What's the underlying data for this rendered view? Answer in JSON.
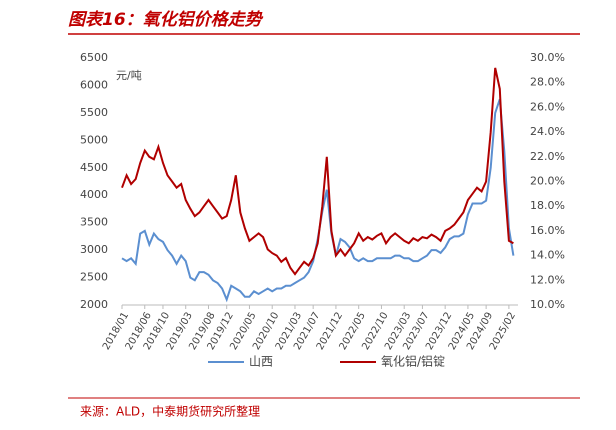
{
  "chart_data": {
    "type": "line",
    "title": "图表16：氧化铝价格走势",
    "unit_label": "元/吨",
    "source": "来源：ALD，中泰期货研究所整理",
    "x": [
      "2018/01",
      "2018/02",
      "2018/03",
      "2018/04",
      "2018/05",
      "2018/06",
      "2018/07",
      "2018/08",
      "2018/09",
      "2018/10",
      "2018/11",
      "2018/12",
      "2019/01",
      "2019/02",
      "2019/03",
      "2019/04",
      "2019/05",
      "2019/06",
      "2019/07",
      "2019/08",
      "2019/09",
      "2019/10",
      "2019/11",
      "2019/12",
      "2020/01",
      "2020/02",
      "2020/03",
      "2020/04",
      "2020/05",
      "2020/06",
      "2020/07",
      "2020/08",
      "2020/09",
      "2020/10",
      "2020/11",
      "2020/12",
      "2021/01",
      "2021/02",
      "2021/03",
      "2021/04",
      "2021/05",
      "2021/06",
      "2021/07",
      "2021/08",
      "2021/09",
      "2021/10",
      "2021/11",
      "2021/12",
      "2022/01",
      "2022/02",
      "2022/03",
      "2022/04",
      "2022/05",
      "2022/06",
      "2022/07",
      "2022/08",
      "2022/09",
      "2022/10",
      "2022/11",
      "2022/12",
      "2023/01",
      "2023/02",
      "2023/03",
      "2023/04",
      "2023/05",
      "2023/06",
      "2023/07",
      "2023/08",
      "2023/09",
      "2023/10",
      "2023/11",
      "2023/12",
      "2024/01",
      "2024/02",
      "2024/03",
      "2024/04",
      "2024/05",
      "2024/06",
      "2024/07",
      "2024/08",
      "2024/09",
      "2024/10",
      "2024/11",
      "2024/12",
      "2025/01",
      "2025/02",
      "2025/03"
    ],
    "xlim": [
      "2018/01",
      "2025/04"
    ],
    "xticks": [
      "2018/01",
      "2018/06",
      "2018/10",
      "2019/03",
      "2019/08",
      "2019/12",
      "2020/05",
      "2020/10",
      "2021/03",
      "2021/07",
      "2021/12",
      "2022/05",
      "2022/10",
      "2023/03",
      "2023/07",
      "2023/12",
      "2024/05",
      "2024/09",
      "2025/02"
    ],
    "ylim": [
      2000,
      6500
    ],
    "yticks": [
      2000,
      2500,
      3000,
      3500,
      4000,
      4500,
      5000,
      5500,
      6000,
      6500
    ],
    "y2lim": [
      10,
      30
    ],
    "y2ticks": [
      {
        "value": 10,
        "label": "10.0%"
      },
      {
        "value": 12,
        "label": "12.0%"
      },
      {
        "value": 14,
        "label": "14.0%"
      },
      {
        "value": 16,
        "label": "16.0%"
      },
      {
        "value": 18,
        "label": "18.0%"
      },
      {
        "value": 20,
        "label": "20.0%"
      },
      {
        "value": 22,
        "label": "22.0%"
      },
      {
        "value": 24,
        "label": "24.0%"
      },
      {
        "value": 26,
        "label": "26.0%"
      },
      {
        "value": 28,
        "label": "28.0%"
      },
      {
        "value": 30,
        "label": "30.0%"
      }
    ],
    "legend": "bottom",
    "series": [
      {
        "name": "山西",
        "color": "#5b8fd0",
        "values": [
          2850,
          2800,
          2850,
          2750,
          3300,
          3350,
          3100,
          3300,
          3200,
          3150,
          3000,
          2900,
          2750,
          2900,
          2800,
          2500,
          2450,
          2600,
          2600,
          2550,
          2450,
          2400,
          2300,
          2100,
          2350,
          2300,
          2250,
          2150,
          2150,
          2250,
          2200,
          2250,
          2300,
          2250,
          2300,
          2300,
          2350,
          2350,
          2400,
          2450,
          2500,
          2600,
          2800,
          3200,
          3700,
          4100,
          3300,
          2900,
          3200,
          3150,
          3050,
          2850,
          2800,
          2850,
          2800,
          2800,
          2850,
          2850,
          2850,
          2850,
          2900,
          2900,
          2850,
          2850,
          2800,
          2800,
          2850,
          2900,
          3000,
          3000,
          2950,
          3050,
          3200,
          3250,
          3250,
          3300,
          3650,
          3850,
          3850,
          3850,
          3900,
          4500,
          5500,
          5750,
          4800,
          3400,
          2900
        ]
      },
      {
        "name": "氧化铝/铝锭",
        "color": "#b00000",
        "axis": "y2",
        "values": [
          19.5,
          20.5,
          19.8,
          20.2,
          21.5,
          22.5,
          22.0,
          21.8,
          22.8,
          21.5,
          20.5,
          20.0,
          19.5,
          19.8,
          18.5,
          17.8,
          17.2,
          17.5,
          18.0,
          18.5,
          18.0,
          17.5,
          17.0,
          17.2,
          18.5,
          20.5,
          17.5,
          16.2,
          15.2,
          15.5,
          15.8,
          15.5,
          14.5,
          14.2,
          14.0,
          13.5,
          13.8,
          13.0,
          12.5,
          13.0,
          13.5,
          13.2,
          13.8,
          15.0,
          18.0,
          22.0,
          16.0,
          14.0,
          14.5,
          14.0,
          14.5,
          15.0,
          15.8,
          15.2,
          15.5,
          15.3,
          15.6,
          15.8,
          15.0,
          15.5,
          15.8,
          15.5,
          15.2,
          15.0,
          15.4,
          15.2,
          15.5,
          15.4,
          15.7,
          15.5,
          15.2,
          16.0,
          16.2,
          16.5,
          17.0,
          17.5,
          18.5,
          19.0,
          19.5,
          19.2,
          20.0,
          24.0,
          29.2,
          27.5,
          20.0,
          15.2,
          15.0
        ]
      }
    ]
  }
}
